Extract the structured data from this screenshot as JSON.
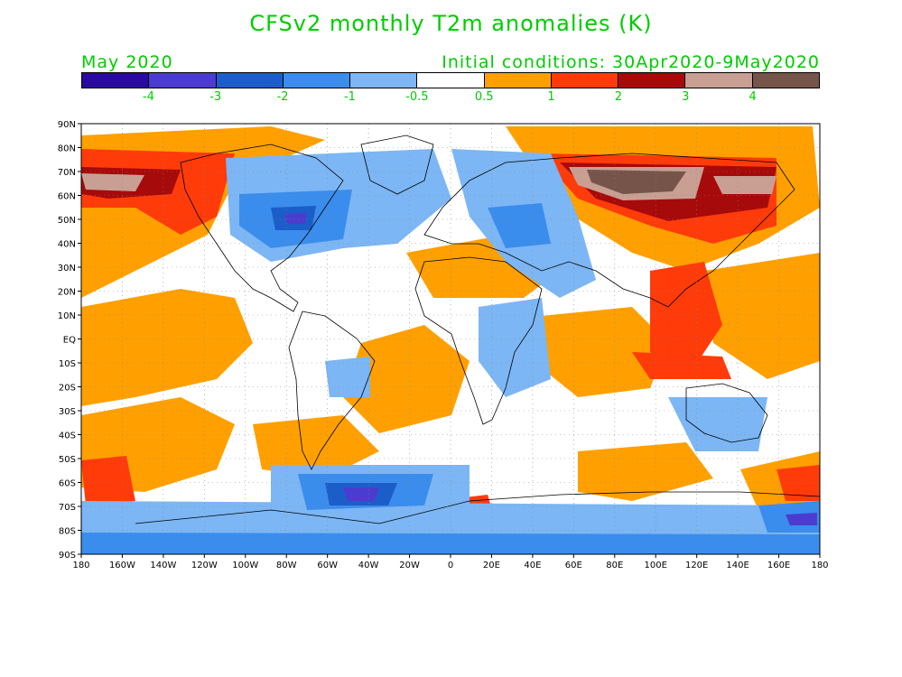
{
  "title": "CFSv2 monthly T2m anomalies (K)",
  "month": "May 2020",
  "initial_conditions": "Initial conditions: 30Apr2020-9May2020",
  "colorbar": {
    "colors": [
      "#2a0a9e",
      "#4b3ccf",
      "#1c5ec9",
      "#3a8ded",
      "#7cb6f4",
      "#ffffff",
      "#ffa000",
      "#ff3b0a",
      "#a60a0a",
      "#c99f93",
      "#76544a"
    ],
    "labels": [
      "-4",
      "-3",
      "-2",
      "-1",
      "-0.5",
      "0.5",
      "1",
      "2",
      "3",
      "4"
    ]
  },
  "y_axis": [
    "90N",
    "80N",
    "70N",
    "60N",
    "50N",
    "40N",
    "30N",
    "20N",
    "10N",
    "EQ",
    "10S",
    "20S",
    "30S",
    "40S",
    "50S",
    "60S",
    "70S",
    "80S",
    "90S"
  ],
  "x_axis": [
    "180",
    "160W",
    "140W",
    "120W",
    "100W",
    "80W",
    "60W",
    "40W",
    "20W",
    "0",
    "20E",
    "40E",
    "60E",
    "80E",
    "100E",
    "120E",
    "140E",
    "160E",
    "180"
  ]
}
